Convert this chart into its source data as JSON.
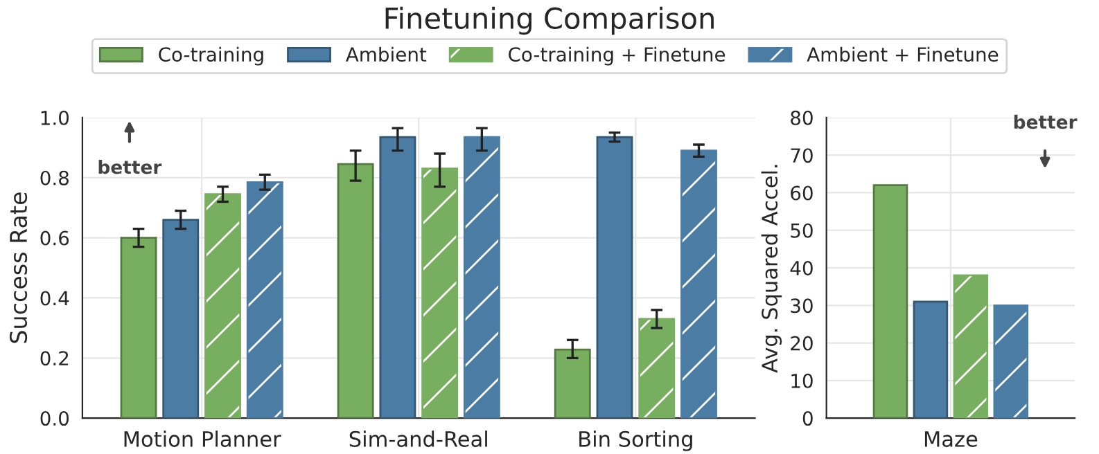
{
  "chart_data": [
    {
      "type": "bar",
      "title": "Finetuning Comparison",
      "ylabel": "Success Rate",
      "categories": [
        "Motion Planner",
        "Sim-and-Real",
        "Bin Sorting"
      ],
      "series": [
        {
          "name": "Co-training",
          "color": "#78ae5f",
          "values": [
            0.6,
            0.845,
            0.228
          ],
          "errors": [
            0.03,
            [
              0.79,
              0.89
            ],
            [
              0.2,
              0.26
            ]
          ]
        },
        {
          "name": "Ambient",
          "color": "#4a7ca4",
          "values": [
            0.66,
            0.935,
            0.935
          ],
          "errors": [
            0.03,
            [
              0.89,
              0.965
            ],
            [
              0.92,
              0.95
            ]
          ]
        },
        {
          "name": "Co-training + Finetune",
          "color": "#78ae5f",
          "values": [
            0.745,
            0.83,
            0.33
          ],
          "errors": [
            0.025,
            [
              0.77,
              0.88
            ],
            [
              0.3,
              0.36
            ]
          ]
        },
        {
          "name": "Ambient + Finetune",
          "color": "#4a7ca4",
          "values": [
            0.785,
            0.935,
            0.89
          ],
          "errors": [
            0.025,
            [
              0.89,
              0.965
            ],
            [
              0.87,
              0.91
            ]
          ]
        }
      ],
      "ylim": [
        0,
        1.0
      ],
      "yticks": [
        {
          "value": 0,
          "label": "0.0"
        },
        0.2,
        0.4,
        0.6,
        0.8,
        {
          "value": 1,
          "label": "1.0"
        }
      ],
      "grid": true,
      "legend": "top",
      "annotations": [
        "better"
      ]
    },
    {
      "type": "bar",
      "ylabel": "Avg. Squared Accel.",
      "categories": [
        "Maze"
      ],
      "series": [
        {
          "color": "#78ae5f",
          "values": [
            62
          ]
        },
        {
          "color": "#4a7ca4",
          "values": [
            31
          ]
        },
        {
          "color": "#78ae5f",
          "values": [
            38
          ]
        },
        {
          "color": "#4a7ca4",
          "values": [
            30
          ]
        }
      ],
      "ylim": [
        0,
        80
      ],
      "yticks": [
        0,
        10,
        20,
        30,
        40,
        50,
        60,
        70,
        80
      ],
      "grid": true,
      "annotations": [
        "better"
      ]
    }
  ]
}
